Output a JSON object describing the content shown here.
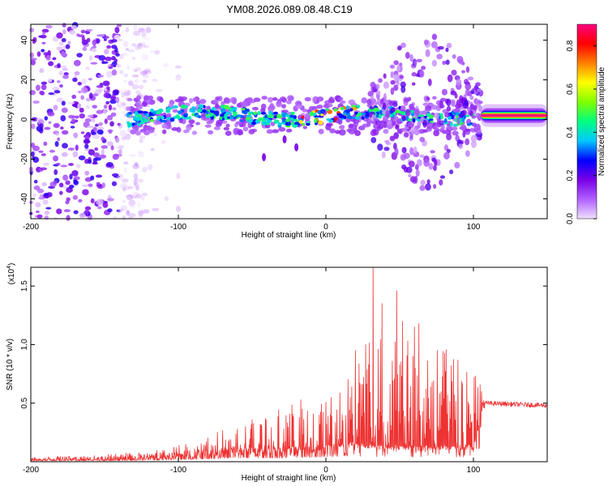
{
  "title": "YM08.2026.089.08.48.C19",
  "chart_data": [
    {
      "type": "heatmap",
      "id": "spectrogram",
      "xlabel": "Height of straight line (km)",
      "ylabel": "Frequency (Hz)",
      "xlim": [
        -200,
        150
      ],
      "ylim": [
        -50,
        48
      ],
      "xticks": [
        -200,
        -100,
        0,
        100
      ],
      "xtick_labels": [
        "-200",
        "-100",
        "0",
        "100"
      ],
      "yticks": [
        -40,
        -20,
        0,
        20,
        40
      ],
      "ytick_labels": [
        "-40",
        "-20",
        "0",
        "20",
        "40"
      ],
      "colorbar": {
        "label": "Normalized spectral amplitude",
        "range": [
          0,
          0.9
        ],
        "ticks": [
          0,
          0.2,
          0.4,
          0.6,
          0.8
        ],
        "tick_labels": [
          "0.0",
          "0.2",
          "0.4",
          "0.6",
          "0.8"
        ],
        "colors": [
          "#f0e0ff",
          "#b060ff",
          "#7a00e6",
          "#0000ff",
          "#00c8ff",
          "#00ff80",
          "#80ff00",
          "#ffff00",
          "#ff8000",
          "#ff0000",
          "#ff0080"
        ]
      },
      "regions": [
        {
          "name": "noise",
          "x_range": [
            -200,
            -120
          ],
          "freq_range": [
            -50,
            48
          ],
          "amplitude": 0.1
        },
        {
          "name": "signal-band",
          "x_range": [
            -135,
            100
          ],
          "freq_center": 2,
          "freq_halfwidth": 6,
          "amplitude": 0.4
        },
        {
          "name": "broadband-burst",
          "x_range": [
            30,
            105
          ],
          "freq_range": [
            -35,
            45
          ],
          "amplitude": 0.15
        },
        {
          "name": "tone",
          "x_range": [
            105,
            150
          ],
          "freq_center": 2,
          "amplitude": 0.9
        }
      ]
    },
    {
      "type": "line",
      "id": "snr",
      "xlabel": "Height of straight line (km)",
      "ylabel": "SNR (10 * v/v)",
      "scale_label": "(x10^4)",
      "scale_base": "(x10",
      "scale_exp": "4",
      "xlim": [
        -200,
        150
      ],
      "ylim": [
        0,
        1.66
      ],
      "xticks": [
        -200,
        -100,
        0,
        100
      ],
      "xtick_labels": [
        "-200",
        "-100",
        "0",
        "100"
      ],
      "yticks": [
        0.5,
        1.0,
        1.5
      ],
      "ytick_labels": [
        "0.5",
        "1.0",
        "1.5"
      ],
      "line_color": "#ee3333",
      "envelope": [
        {
          "x": -200,
          "base": 0.02,
          "peak": 0.03
        },
        {
          "x": -150,
          "base": 0.02,
          "peak": 0.05
        },
        {
          "x": -120,
          "base": 0.03,
          "peak": 0.08
        },
        {
          "x": -90,
          "base": 0.05,
          "peak": 0.15
        },
        {
          "x": -60,
          "base": 0.08,
          "peak": 0.3
        },
        {
          "x": -30,
          "base": 0.08,
          "peak": 0.45
        },
        {
          "x": 0,
          "base": 0.1,
          "peak": 0.55
        },
        {
          "x": 20,
          "base": 0.12,
          "peak": 0.8
        },
        {
          "x": 30,
          "base": 0.1,
          "peak": 1.1
        },
        {
          "x": 50,
          "base": 0.1,
          "peak": 1.0
        },
        {
          "x": 70,
          "base": 0.1,
          "peak": 1.0
        },
        {
          "x": 100,
          "base": 0.1,
          "peak": 0.8
        },
        {
          "x": 108,
          "base": 0.48,
          "peak": 0.52
        },
        {
          "x": 150,
          "base": 0.46,
          "peak": 0.5
        }
      ],
      "spikes": [
        {
          "x": 32,
          "y": 1.66
        },
        {
          "x": 48,
          "y": 1.46
        },
        {
          "x": 20,
          "y": 0.95
        },
        {
          "x": 27,
          "y": 1.0
        },
        {
          "x": 38,
          "y": 1.35
        },
        {
          "x": 52,
          "y": 1.2
        },
        {
          "x": 60,
          "y": 1.15
        },
        {
          "x": 63,
          "y": 1.18
        }
      ]
    }
  ]
}
